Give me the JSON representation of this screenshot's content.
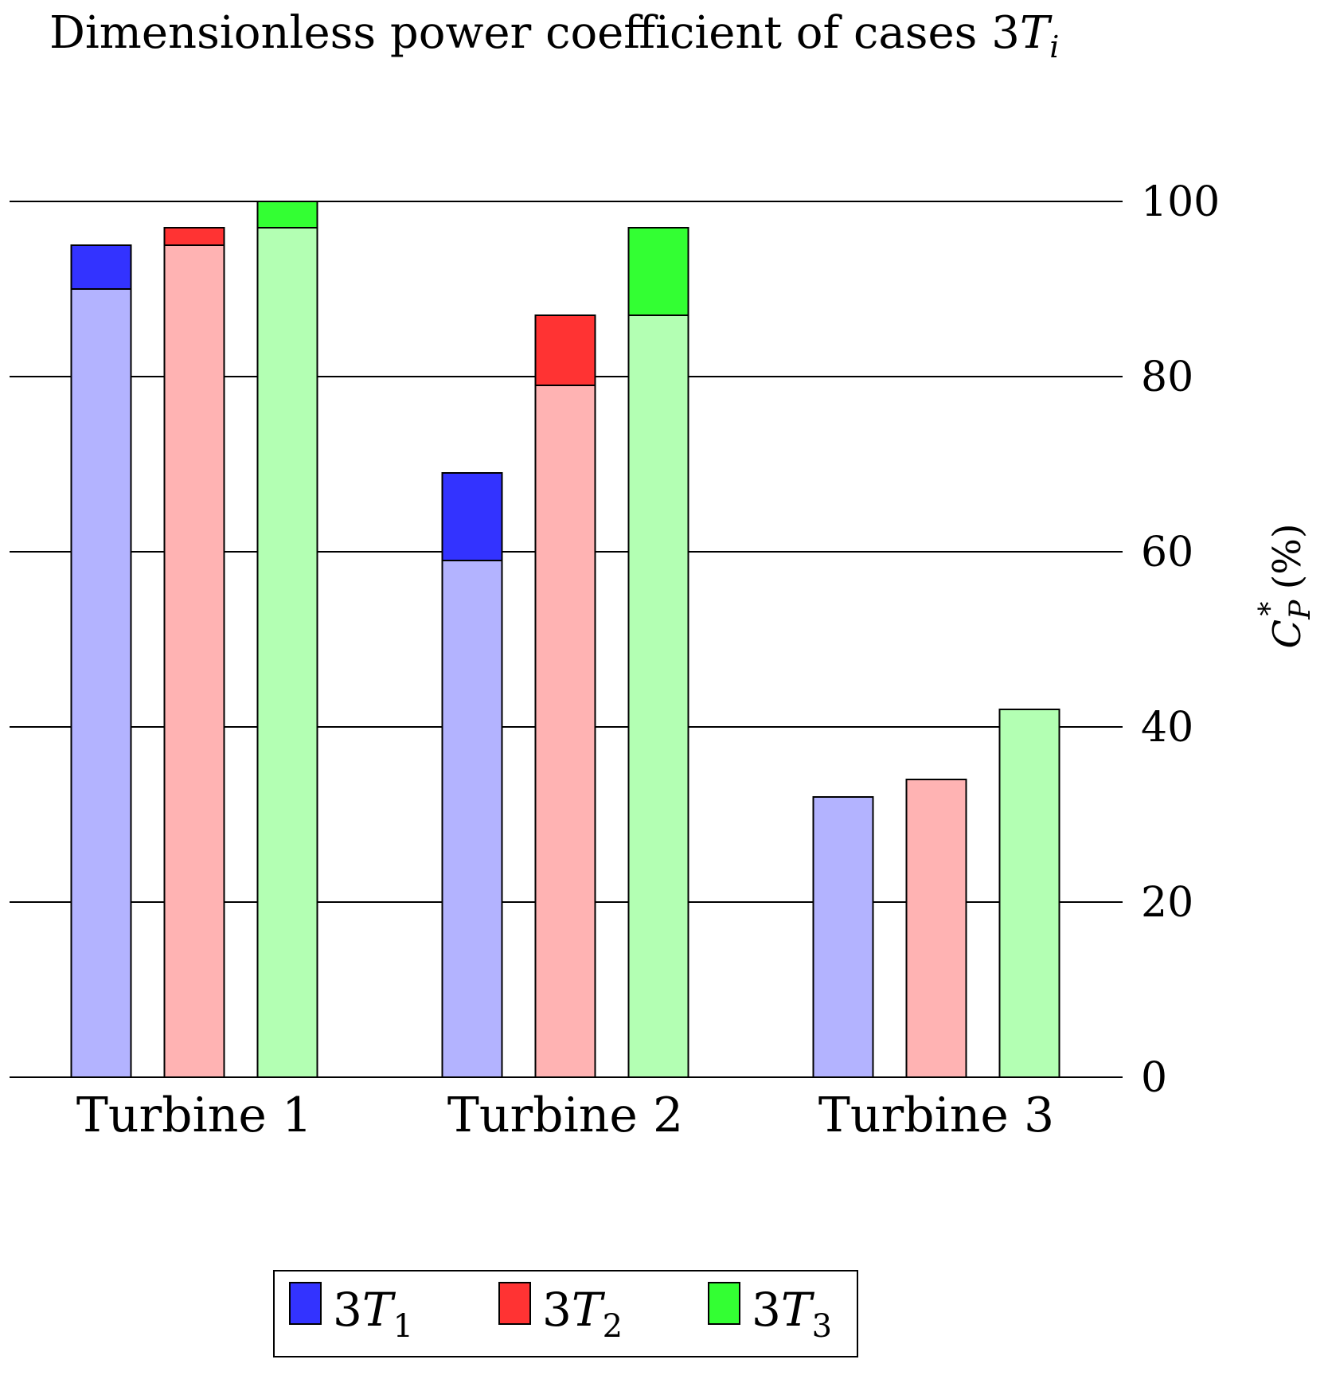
{
  "chart_data": {
    "type": "bar",
    "title": "Dimensionless power coefficient of cases ",
    "title_math": {
      "base": "3",
      "var": "T",
      "sub": "i"
    },
    "ylabel": {
      "var": "C",
      "sub": "P",
      "sup": "*",
      "suffix": " (%)"
    },
    "xlabel": "",
    "ylim": [
      0,
      100
    ],
    "y_ticks": [
      0,
      20,
      40,
      60,
      80,
      100
    ],
    "y_axis_side": "right",
    "grid": "horizontal",
    "categories": [
      "Turbine 1",
      "Turbine 2",
      "Turbine 3"
    ],
    "series": [
      {
        "legend_base": "3",
        "legend_var": "T",
        "legend_sub": "1",
        "color": "#3333ff",
        "light_color": "#b3b3ff",
        "values": [
          95,
          69,
          null
        ],
        "base_values": [
          90,
          59,
          32
        ]
      },
      {
        "legend_base": "3",
        "legend_var": "T",
        "legend_sub": "2",
        "color": "#ff3333",
        "light_color": "#ffb3b3",
        "values": [
          97,
          87,
          null
        ],
        "base_values": [
          95,
          79,
          34
        ]
      },
      {
        "legend_base": "3",
        "legend_var": "T",
        "legend_sub": "3",
        "color": "#33ff33",
        "light_color": "#b3ffb3",
        "values": [
          100,
          97,
          null
        ],
        "base_values": [
          97,
          87,
          42
        ]
      }
    ],
    "legend_position": "bottom-center"
  }
}
